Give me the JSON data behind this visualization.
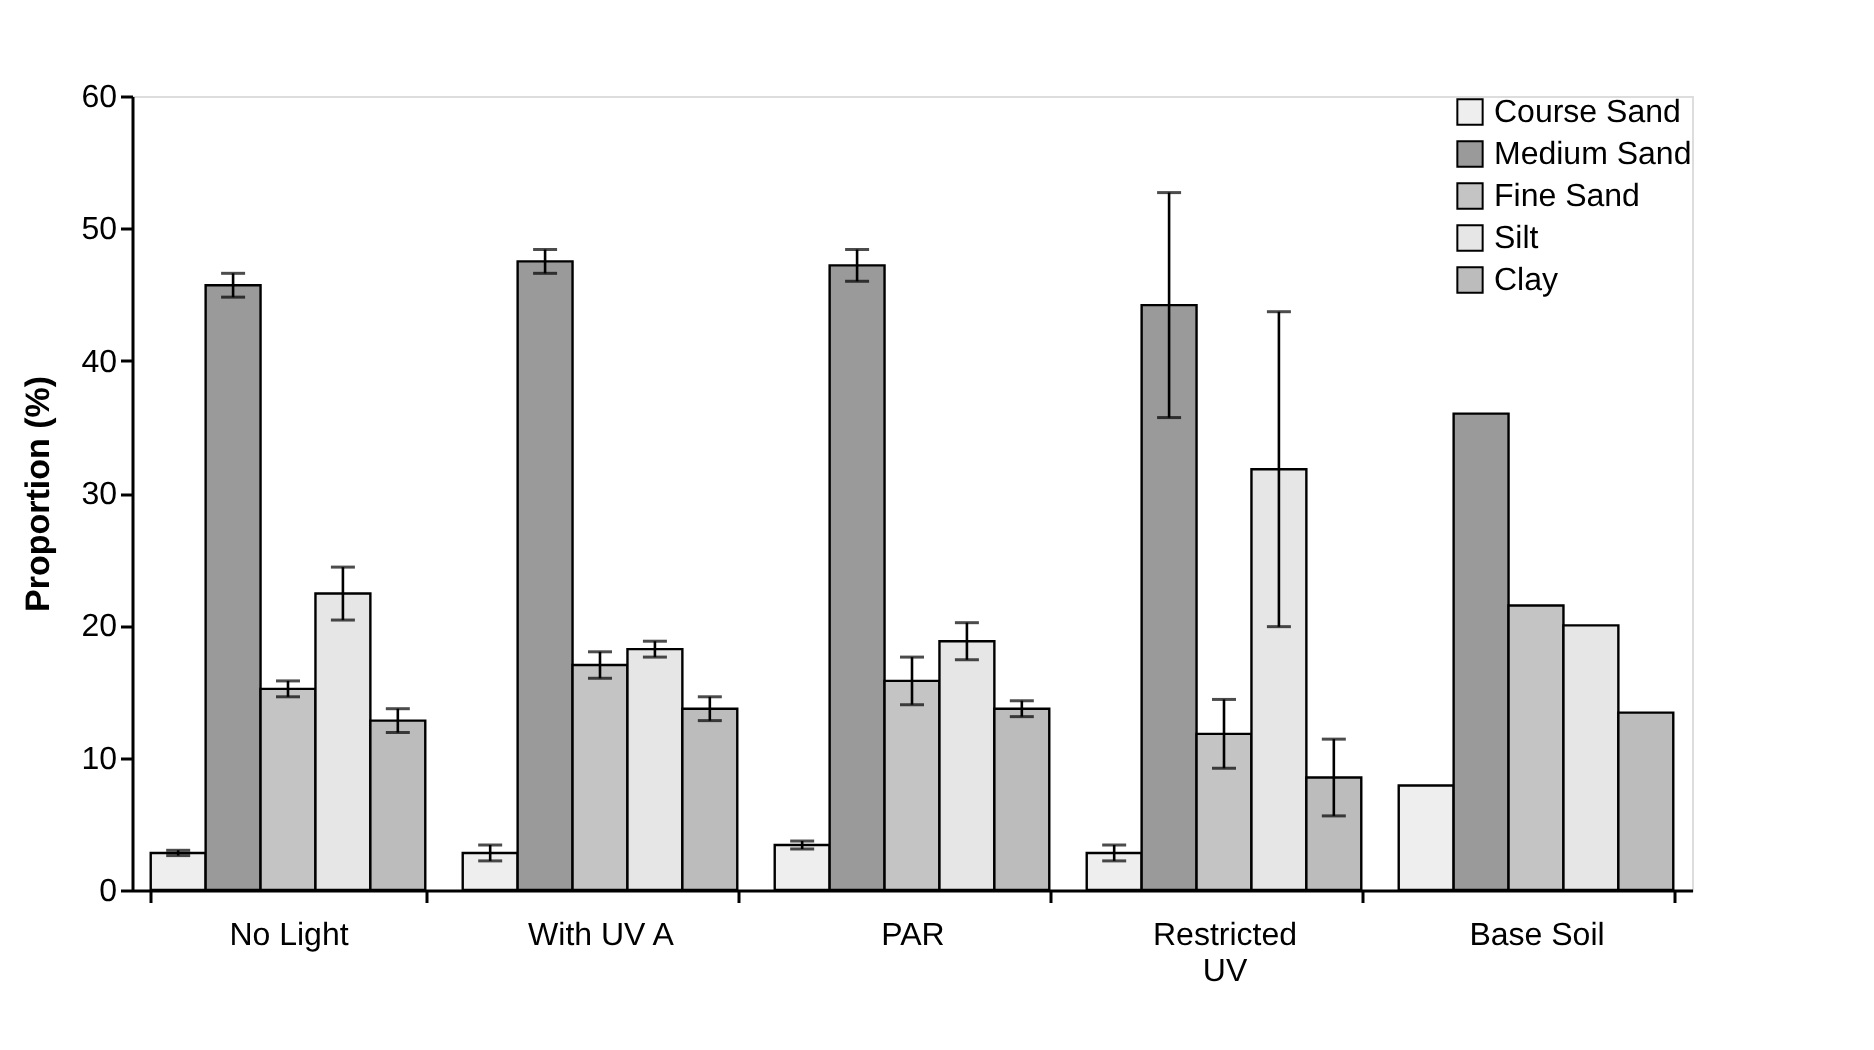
{
  "chart_data": {
    "type": "bar",
    "ylabel": "Proportion (%)",
    "categories": [
      "No Light",
      "With UV A",
      "PAR",
      "Restricted UV",
      "Base Soil"
    ],
    "series": [
      {
        "name": "Course Sand",
        "color": "#eeeeee",
        "values": [
          2.8,
          2.8,
          3.4,
          2.8,
          7.9
        ],
        "errors": [
          0.2,
          0.6,
          0.3,
          0.6,
          null
        ]
      },
      {
        "name": "Medium Sand",
        "color": "#9a9a9a",
        "values": [
          45.7,
          47.5,
          47.2,
          44.2,
          36.0
        ],
        "errors": [
          0.9,
          0.9,
          1.2,
          8.5,
          null
        ]
      },
      {
        "name": "Fine Sand",
        "color": "#c4c4c4",
        "values": [
          15.2,
          17.0,
          15.8,
          11.8,
          21.5
        ],
        "errors": [
          0.6,
          1.0,
          1.8,
          2.6,
          null
        ]
      },
      {
        "name": "Silt",
        "color": "#e6e6e6",
        "values": [
          22.4,
          18.2,
          18.8,
          31.8,
          20.0
        ],
        "errors": [
          2.0,
          0.6,
          1.4,
          11.9,
          null
        ]
      },
      {
        "name": "Clay",
        "color": "#bcbcbc",
        "values": [
          12.8,
          13.7,
          13.7,
          8.5,
          13.4
        ],
        "errors": [
          0.9,
          0.9,
          0.6,
          2.9,
          null
        ]
      }
    ],
    "ylim": [
      0,
      60
    ],
    "yticks": [
      0,
      10,
      20,
      30,
      40,
      50,
      60
    ],
    "grid": false,
    "legend": "top right"
  }
}
